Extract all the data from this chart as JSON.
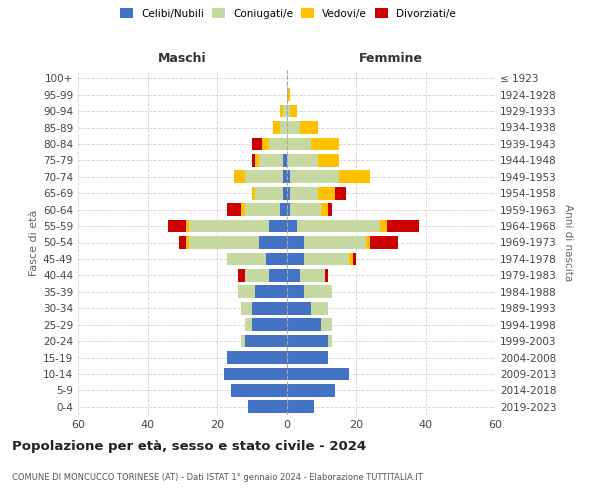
{
  "age_groups": [
    "100+",
    "95-99",
    "90-94",
    "85-89",
    "80-84",
    "75-79",
    "70-74",
    "65-69",
    "60-64",
    "55-59",
    "50-54",
    "45-49",
    "40-44",
    "35-39",
    "30-34",
    "25-29",
    "20-24",
    "15-19",
    "10-14",
    "5-9",
    "0-4"
  ],
  "birth_years": [
    "≤ 1923",
    "1924-1928",
    "1929-1933",
    "1934-1938",
    "1939-1943",
    "1944-1948",
    "1949-1953",
    "1954-1958",
    "1959-1963",
    "1964-1968",
    "1969-1973",
    "1974-1978",
    "1979-1983",
    "1984-1988",
    "1989-1993",
    "1994-1998",
    "1999-2003",
    "2004-2008",
    "2009-2013",
    "2014-2018",
    "2019-2023"
  ],
  "maschi": {
    "celibi": [
      0,
      0,
      0,
      0,
      0,
      1,
      1,
      1,
      2,
      5,
      8,
      6,
      5,
      9,
      10,
      10,
      12,
      17,
      18,
      16,
      11
    ],
    "coniugati": [
      0,
      0,
      1,
      2,
      5,
      7,
      11,
      8,
      10,
      23,
      20,
      11,
      7,
      5,
      3,
      2,
      1,
      0,
      0,
      0,
      0
    ],
    "vedovi": [
      0,
      0,
      1,
      2,
      2,
      1,
      3,
      1,
      1,
      1,
      1,
      0,
      0,
      0,
      0,
      0,
      0,
      0,
      0,
      0,
      0
    ],
    "divorziati": [
      0,
      0,
      0,
      0,
      3,
      1,
      0,
      0,
      4,
      5,
      2,
      0,
      2,
      0,
      0,
      0,
      0,
      0,
      0,
      0,
      0
    ]
  },
  "femmine": {
    "nubili": [
      0,
      0,
      0,
      0,
      0,
      0,
      1,
      1,
      1,
      3,
      5,
      5,
      4,
      5,
      7,
      10,
      12,
      12,
      18,
      14,
      8
    ],
    "coniugate": [
      0,
      0,
      1,
      4,
      7,
      9,
      14,
      8,
      9,
      24,
      18,
      13,
      7,
      8,
      5,
      3,
      1,
      0,
      0,
      0,
      0
    ],
    "vedove": [
      0,
      1,
      2,
      5,
      8,
      6,
      9,
      5,
      2,
      2,
      1,
      1,
      0,
      0,
      0,
      0,
      0,
      0,
      0,
      0,
      0
    ],
    "divorziate": [
      0,
      0,
      0,
      0,
      0,
      0,
      0,
      3,
      1,
      9,
      8,
      1,
      1,
      0,
      0,
      0,
      0,
      0,
      0,
      0,
      0
    ]
  },
  "colors": {
    "celibi": "#4472c4",
    "coniugati": "#c5d9a0",
    "vedovi": "#ffc000",
    "divorziati": "#cc0000"
  },
  "title": "Popolazione per età, sesso e stato civile - 2024",
  "subtitle": "COMUNE DI MONCUCCO TORINESE (AT) - Dati ISTAT 1° gennaio 2024 - Elaborazione TUTTITALIA.IT",
  "xlabel_left": "Maschi",
  "xlabel_right": "Femmine",
  "ylabel_left": "Fasce di età",
  "ylabel_right": "Anni di nascita",
  "xlim": 60,
  "bg_color": "#ffffff",
  "grid_color": "#cccccc"
}
